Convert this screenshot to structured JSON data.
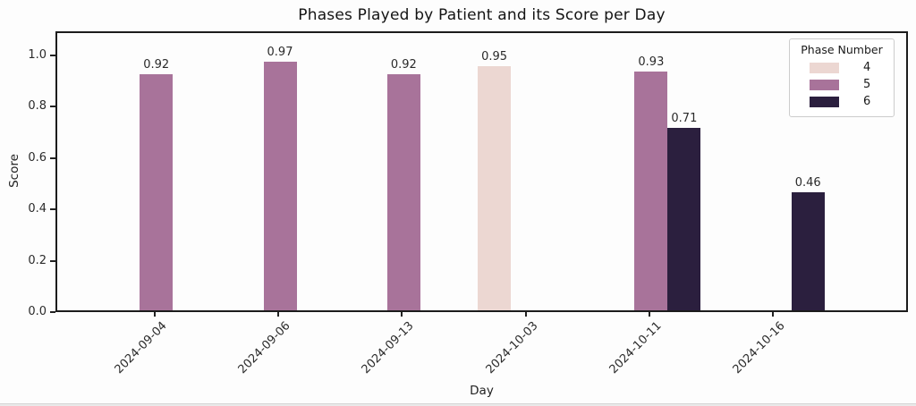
{
  "chart_data": {
    "type": "bar",
    "title": "Phases Played by Patient and its Score per Day",
    "xlabel": "Day",
    "ylabel": "Score",
    "categories": [
      "2024-09-04",
      "2024-09-06",
      "2024-09-13",
      "2024-10-03",
      "2024-10-11",
      "2024-10-16"
    ],
    "series": [
      {
        "name": "4",
        "color": "#ecd7d2",
        "values": [
          null,
          null,
          null,
          0.95,
          null,
          null
        ]
      },
      {
        "name": "5",
        "color": "#a8739a",
        "values": [
          0.92,
          0.97,
          0.92,
          null,
          0.93,
          null
        ]
      },
      {
        "name": "6",
        "color": "#2b1f3e",
        "values": [
          null,
          null,
          null,
          null,
          0.71,
          0.46
        ]
      }
    ],
    "legend_title": "Phase Number",
    "legend_position": "upper right",
    "yticks": [
      0.0,
      0.2,
      0.4,
      0.6,
      0.8,
      1.0
    ],
    "ylim": [
      0,
      1.09
    ],
    "grid": false,
    "bar_labels": true
  }
}
